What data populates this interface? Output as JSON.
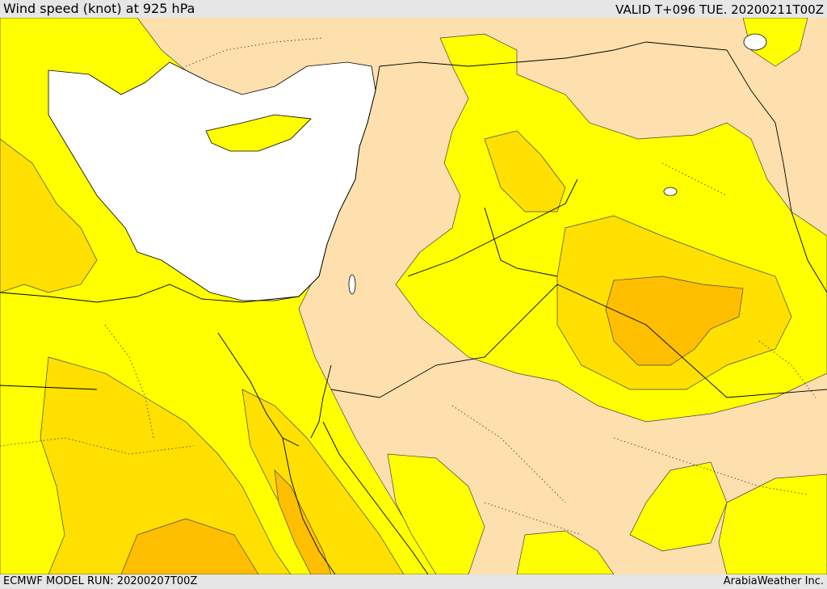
{
  "header": {
    "title": "Wind speed (knot) at 925 hPa",
    "valid": "VALID T+096 TUE. 20200211T00Z"
  },
  "footer": {
    "model_run": "ECMWF MODEL RUN: 20200207T00Z",
    "credit": "ArabiaWeather Inc."
  },
  "colors": {
    "land_calm": "#fde0ad",
    "band_yellow": "#ffff00",
    "band_gold": "#ffe000",
    "band_orange": "#ffbf00",
    "sea_mask": "#ffffff",
    "border_line": "#000000"
  }
}
